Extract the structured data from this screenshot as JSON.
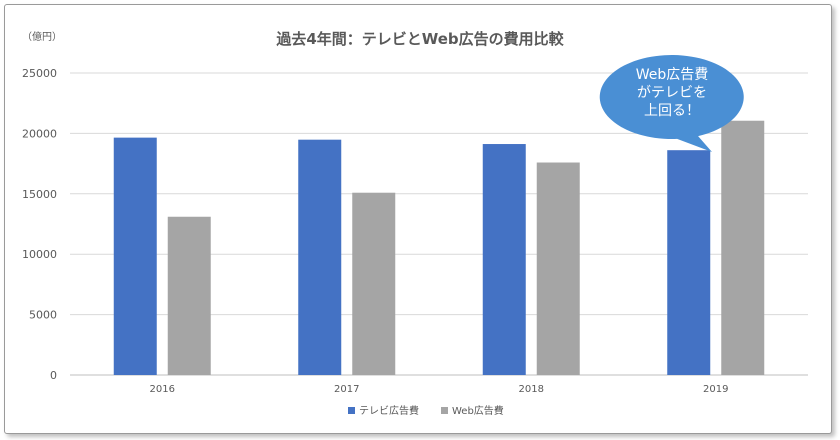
{
  "chart_data": {
    "type": "bar",
    "title": "過去4年間：テレビとWeb広告の費用比較",
    "ylabel": "（億円）",
    "categories": [
      "2016",
      "2017",
      "2018",
      "2019"
    ],
    "series": [
      {
        "name": "テレビ広告費",
        "color": "#4472C4",
        "values": [
          19650,
          19480,
          19120,
          18610
        ]
      },
      {
        "name": "Web広告費",
        "color": "#A5A5A5",
        "values": [
          13100,
          15090,
          17590,
          21050
        ]
      }
    ],
    "ylim": [
      0,
      25000
    ],
    "yticks": [
      0,
      5000,
      10000,
      15000,
      20000,
      25000
    ],
    "grid": true,
    "legend": "bottom",
    "annotation": {
      "lines": [
        "Web広告費",
        "がテレビを",
        "上回る！"
      ],
      "target_category": "2019",
      "color": "#4A8FD4"
    }
  }
}
